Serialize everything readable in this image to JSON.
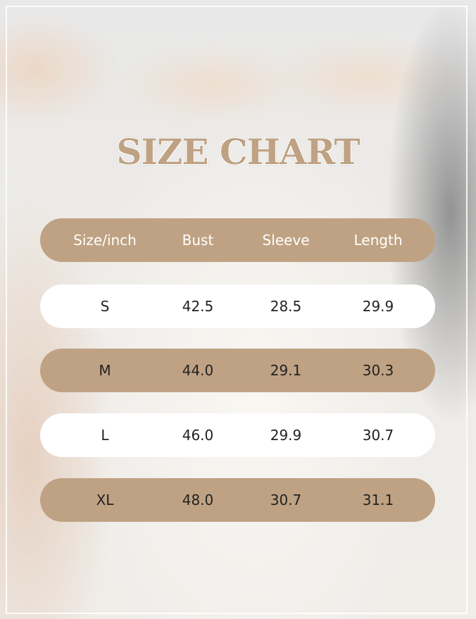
{
  "title": "SIZE CHART",
  "colors": {
    "accent": "#bfa283",
    "light_row": "#ffffff"
  },
  "chart_data": {
    "type": "table",
    "title": "SIZE CHART",
    "columns": [
      "Size/inch",
      "Bust",
      "Sleeve",
      "Length"
    ],
    "rows": [
      [
        "S",
        "42.5",
        "28.5",
        "29.9"
      ],
      [
        "M",
        "44.0",
        "29.1",
        "30.3"
      ],
      [
        "L",
        "46.0",
        "29.9",
        "30.7"
      ],
      [
        "XL",
        "48.0",
        "30.7",
        "31.1"
      ]
    ]
  }
}
